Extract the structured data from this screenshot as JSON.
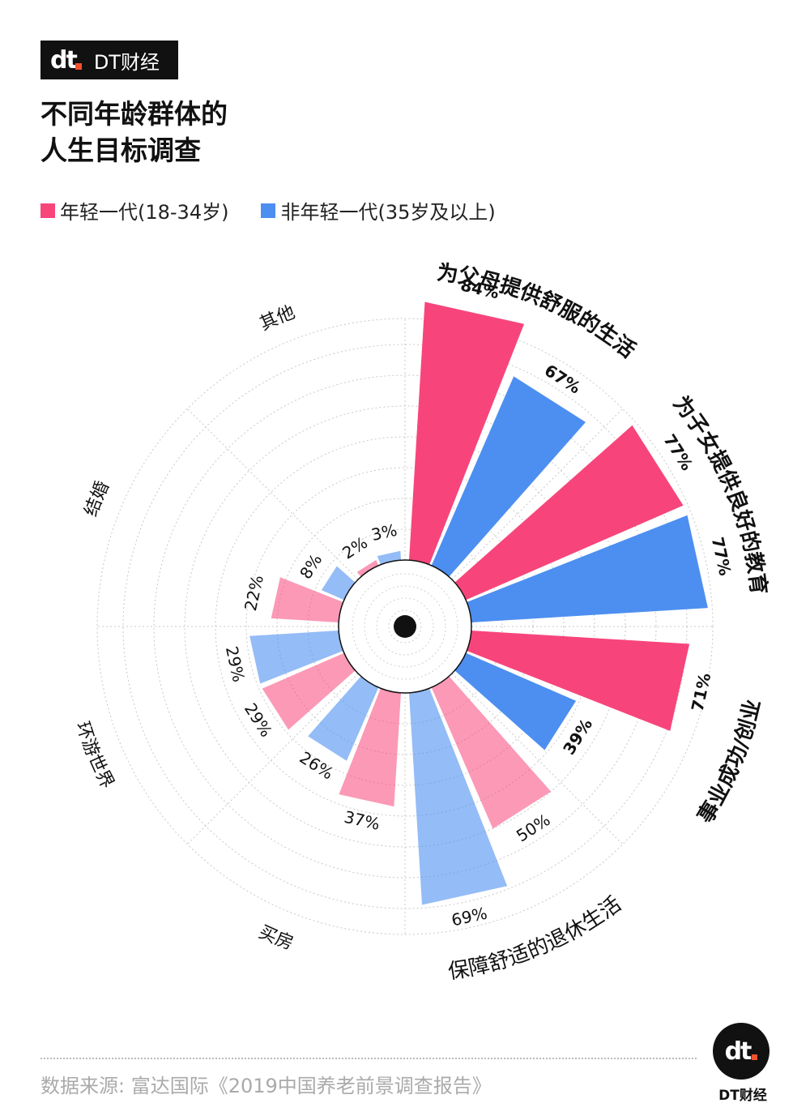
{
  "brand": {
    "mark": "dt",
    "name": "DT财经"
  },
  "title_line1": "不同年龄群体的",
  "title_line2": "人生目标调查",
  "colors": {
    "young": "#f7457b",
    "old": "#4d8ff0"
  },
  "footer": {
    "source": "数据来源: 富达国际《2019中国养老前景调查报告》",
    "brand": "DT财经",
    "mark": "dt"
  },
  "chart_data": {
    "type": "bar",
    "subtype": "polar",
    "title": "不同年龄群体的人生目标调查",
    "categories": [
      "为父母提供舒服的生活",
      "为子女提供良好的教育",
      "事业成功/创业",
      "保障舒适的退休生活",
      "买房",
      "环游世界",
      "结婚",
      "其他"
    ],
    "series": [
      {
        "name": "年轻一代(18-34岁)",
        "values": [
          84,
          77,
          71,
          50,
          37,
          29,
          22,
          2
        ]
      },
      {
        "name": "非年轻一代(35岁及以上)",
        "values": [
          67,
          77,
          39,
          69,
          26,
          29,
          8,
          3
        ]
      }
    ],
    "value_labels": {
      "young": [
        "84%",
        "77%",
        "71%",
        "50%",
        "37%",
        "29%",
        "22%",
        "2%"
      ],
      "old": [
        "67%",
        "77%",
        "39%",
        "69%",
        "26%",
        "29%",
        "8%",
        "3%"
      ]
    },
    "highlight": [
      0,
      1,
      2
    ],
    "rlim": [
      0,
      100
    ]
  }
}
